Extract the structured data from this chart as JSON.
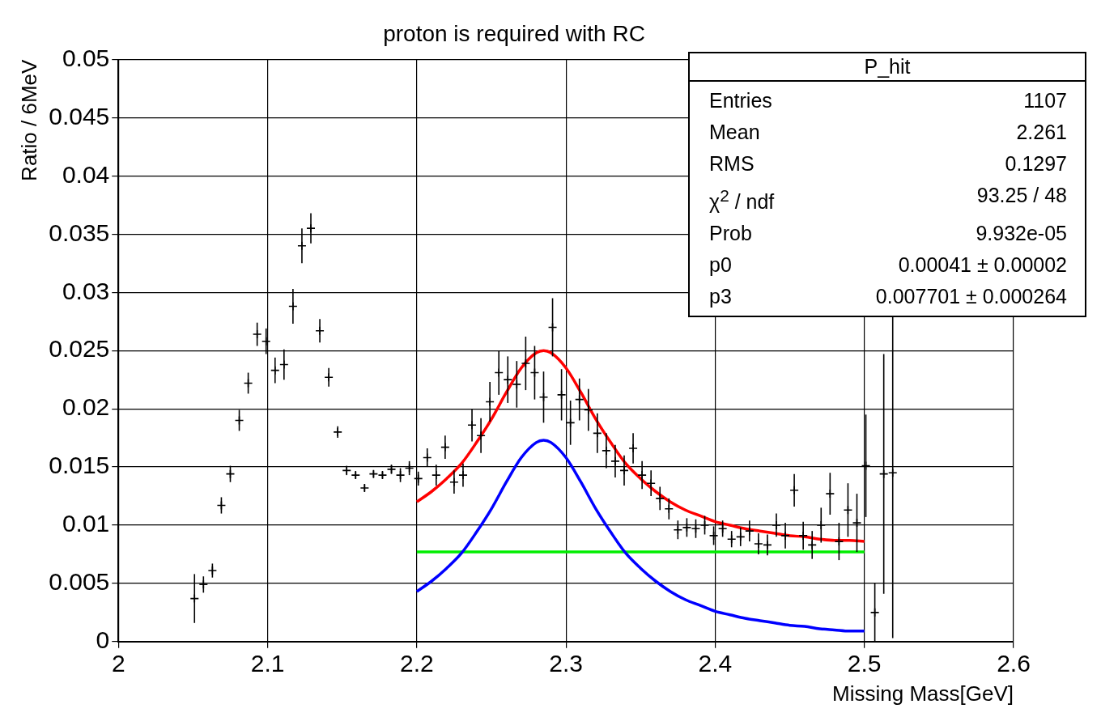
{
  "chart_data": {
    "type": "scatter",
    "title": "proton is required with RC",
    "xlabel": "Missing Mass[GeV]",
    "ylabel": "Ratio / 6MeV",
    "xlim": [
      2,
      2.6
    ],
    "xticks": [
      2,
      2.1,
      2.2,
      2.3,
      2.4,
      2.5,
      2.6
    ],
    "ylim": [
      0,
      0.05
    ],
    "yticks": [
      0,
      0.005,
      0.01,
      0.015,
      0.02,
      0.025,
      0.03,
      0.035,
      0.04,
      0.045,
      0.05
    ],
    "grid": true,
    "legend": false,
    "series": [
      {
        "marker": "cross",
        "color": "#000000",
        "x": [
          2.051,
          2.057,
          2.063,
          2.069,
          2.075,
          2.081,
          2.087,
          2.093,
          2.099,
          2.105,
          2.111,
          2.117,
          2.123,
          2.129,
          2.135,
          2.141,
          2.147,
          2.153,
          2.159,
          2.165,
          2.171,
          2.177,
          2.183,
          2.189,
          2.195,
          2.201,
          2.207,
          2.213,
          2.219,
          2.225,
          2.231,
          2.237,
          2.243,
          2.249,
          2.255,
          2.261,
          2.267,
          2.273,
          2.279,
          2.285,
          2.291,
          2.297,
          2.303,
          2.309,
          2.315,
          2.321,
          2.327,
          2.333,
          2.339,
          2.345,
          2.351,
          2.357,
          2.363,
          2.369,
          2.375,
          2.381,
          2.387,
          2.393,
          2.399,
          2.405,
          2.411,
          2.417,
          2.423,
          2.429,
          2.435,
          2.441,
          2.447,
          2.453,
          2.459,
          2.465,
          2.471,
          2.477,
          2.483,
          2.489,
          2.495,
          2.501,
          2.507,
          2.513,
          2.519
        ],
        "values": [
          0.0037,
          0.0049,
          0.0061,
          0.0117,
          0.0144,
          0.019,
          0.0222,
          0.0264,
          0.0258,
          0.0233,
          0.0238,
          0.0288,
          0.034,
          0.0355,
          0.0267,
          0.0227,
          0.018,
          0.0147,
          0.0143,
          0.0132,
          0.0144,
          0.0143,
          0.0148,
          0.0143,
          0.0149,
          0.014,
          0.0158,
          0.0143,
          0.0167,
          0.0137,
          0.0143,
          0.0186,
          0.0177,
          0.0206,
          0.0231,
          0.0225,
          0.0221,
          0.0239,
          0.0231,
          0.021,
          0.027,
          0.0212,
          0.0188,
          0.0208,
          0.0199,
          0.0179,
          0.0164,
          0.0155,
          0.0147,
          0.0166,
          0.0143,
          0.0136,
          0.0123,
          0.0114,
          0.0096,
          0.0098,
          0.0097,
          0.01,
          0.0091,
          0.0097,
          0.0088,
          0.009,
          0.0095,
          0.0084,
          0.0083,
          0.01,
          0.0091,
          0.013,
          0.0091,
          0.0083,
          0.01,
          0.0127,
          0.0086,
          0.0113,
          0.0102,
          0.0151,
          0.0025,
          0.0144,
          0.0145
        ],
        "errors": [
          0.0021,
          0.0007,
          0.0006,
          0.0007,
          0.0007,
          0.0009,
          0.0009,
          0.001,
          0.0011,
          0.0011,
          0.0013,
          0.0015,
          0.0015,
          0.0013,
          0.001,
          0.0008,
          0.0005,
          0.0004,
          0.0003,
          0.0003,
          0.0003,
          0.0003,
          0.0004,
          0.0006,
          0.0006,
          0.0006,
          0.0008,
          0.0009,
          0.001,
          0.001,
          0.001,
          0.0014,
          0.0015,
          0.0017,
          0.0019,
          0.002,
          0.002,
          0.0023,
          0.0023,
          0.0022,
          0.0025,
          0.0022,
          0.0019,
          0.0018,
          0.0018,
          0.0017,
          0.0015,
          0.0014,
          0.0013,
          0.0013,
          0.0012,
          0.0011,
          0.001,
          0.0009,
          0.0008,
          0.0008,
          0.0008,
          0.0008,
          0.0008,
          0.0007,
          0.0007,
          0.0008,
          0.0009,
          0.0009,
          0.0009,
          0.001,
          0.0011,
          0.0014,
          0.0012,
          0.0012,
          0.0015,
          0.0018,
          0.0016,
          0.0023,
          0.0025,
          0.0044,
          0.0025,
          0.0103,
          [
            0.0003,
            0.029
          ]
        ]
      },
      {
        "type": "line",
        "color": "#ff0000",
        "x": [
          2.2,
          2.21,
          2.22,
          2.23,
          2.24,
          2.25,
          2.26,
          2.27,
          2.28,
          2.285,
          2.29,
          2.3,
          2.31,
          2.32,
          2.33,
          2.34,
          2.35,
          2.36,
          2.37,
          2.38,
          2.39,
          2.4,
          2.41,
          2.42,
          2.43,
          2.44,
          2.45,
          2.46,
          2.47,
          2.48,
          2.49,
          2.5
        ],
        "values": [
          0.012,
          0.0129,
          0.014,
          0.0153,
          0.0171,
          0.0191,
          0.0214,
          0.0235,
          0.0248,
          0.025,
          0.0248,
          0.0235,
          0.0214,
          0.0191,
          0.0171,
          0.0153,
          0.014,
          0.0129,
          0.012,
          0.0113,
          0.0108,
          0.0103,
          0.01,
          0.0097,
          0.0095,
          0.0093,
          0.0091,
          0.009,
          0.0088,
          0.0087,
          0.0087,
          0.0086
        ]
      },
      {
        "type": "line",
        "color": "#0000ff",
        "x": [
          2.2,
          2.21,
          2.22,
          2.23,
          2.24,
          2.25,
          2.26,
          2.27,
          2.28,
          2.285,
          2.29,
          2.3,
          2.31,
          2.32,
          2.33,
          2.34,
          2.35,
          2.36,
          2.37,
          2.38,
          2.39,
          2.4,
          2.41,
          2.42,
          2.43,
          2.44,
          2.45,
          2.46,
          2.47,
          2.48,
          2.49,
          2.5
        ],
        "values": [
          0.0043,
          0.0052,
          0.0063,
          0.0076,
          0.0094,
          0.0114,
          0.0137,
          0.0158,
          0.0171,
          0.0173,
          0.0171,
          0.0158,
          0.0137,
          0.0114,
          0.0094,
          0.0076,
          0.0063,
          0.0052,
          0.0043,
          0.0036,
          0.0031,
          0.0026,
          0.0023,
          0.002,
          0.0018,
          0.0016,
          0.0014,
          0.0013,
          0.0011,
          0.001,
          0.0009,
          0.0009
        ]
      },
      {
        "type": "line",
        "color": "#00ee00",
        "x": [
          2.2,
          2.5
        ],
        "values": [
          0.0077,
          0.0077
        ]
      }
    ],
    "annotations": [
      "P_hit",
      "Entries",
      "1107",
      "Mean",
      "2.261",
      "RMS",
      "0.1297",
      "χ$^{2}$ / ndf",
      "93.25 / 48",
      "Prob",
      "9.932e-05",
      "p0",
      "0.00041 ± 0.00002",
      "p3",
      "0.007701 ± 0.000264"
    ]
  }
}
